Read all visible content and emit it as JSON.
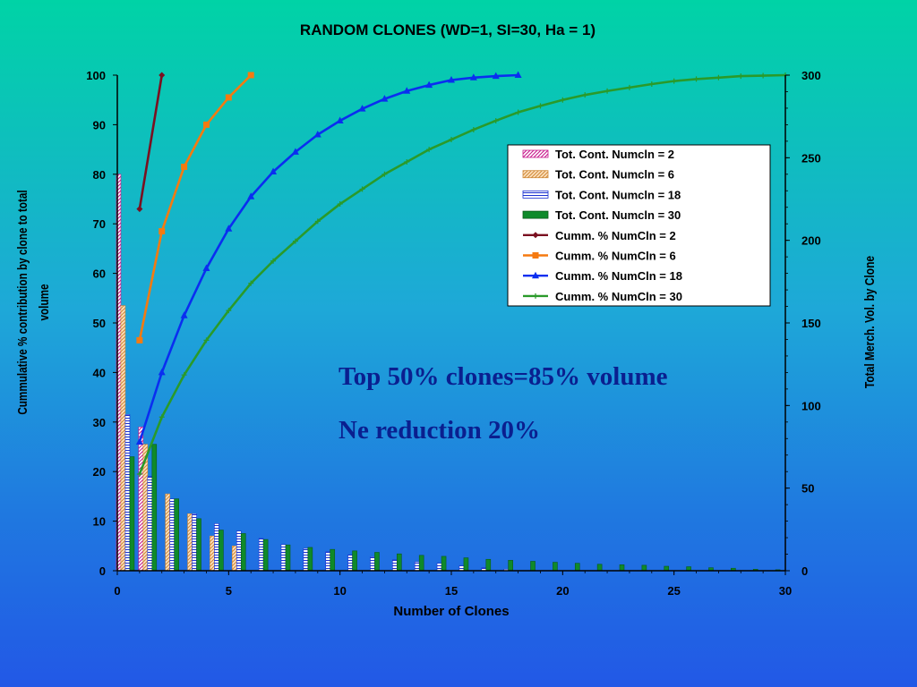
{
  "chart_data": {
    "type": "bar",
    "title": "RANDOM CLONES (WD=1, SI=30, Ha = 1)",
    "xlabel": "Number of Clones",
    "ylabel_left": "Cummulative % contribution by clone to total volume",
    "ylabel_right": "Total Merch. Vol. by Clone",
    "xlim": [
      0,
      30
    ],
    "ylim_left": [
      0,
      100
    ],
    "ylim_right": [
      0,
      300
    ],
    "xticks": [
      0,
      5,
      10,
      15,
      20,
      25,
      30
    ],
    "yticks_left": [
      0,
      10,
      20,
      30,
      40,
      50,
      60,
      70,
      80,
      90,
      100
    ],
    "yticks_right": [
      0,
      50,
      100,
      150,
      200,
      250,
      300
    ],
    "legend_position": "right",
    "grid": false,
    "annotations": [
      "Top 50% clones=85% volume",
      "Ne reduction 20%"
    ],
    "bar_series": [
      {
        "name": "Tot. Cont. Numcln = 2",
        "color": "#c8188c",
        "pattern": "diag",
        "values": [
          80,
          29
        ]
      },
      {
        "name": "Tot. Cont. Numcln = 6",
        "color": "#d08a3a",
        "pattern": "diag-orange",
        "values": [
          53.5,
          25.5,
          15.5,
          11.5,
          7,
          5
        ]
      },
      {
        "name": "Tot. Cont. Numcln = 18",
        "color": "#1a30d0",
        "pattern": "hbar",
        "values": [
          31.5,
          19,
          14.5,
          11.5,
          9.5,
          8,
          6.5,
          5.3,
          4.5,
          3.8,
          3.2,
          2.8,
          2.2,
          1.8,
          1.5,
          1,
          0.6,
          0.3
        ]
      },
      {
        "name": "Tot. Cont. Numcln = 30",
        "color": "#0f8a2a",
        "pattern": "solid",
        "values": [
          23,
          25.5,
          14.5,
          10.5,
          8.2,
          7.5,
          6.3,
          5.2,
          4.7,
          4.3,
          4,
          3.7,
          3.4,
          3.1,
          2.9,
          2.6,
          2.3,
          2.1,
          1.9,
          1.7,
          1.5,
          1.3,
          1.2,
          1.1,
          0.9,
          0.8,
          0.6,
          0.5,
          0.3,
          0.2
        ]
      }
    ],
    "line_series": [
      {
        "name": "Cumm. % NumCln = 2",
        "color": "#7a1020",
        "marker": "diamond",
        "x": [
          1,
          2
        ],
        "values": [
          73,
          100
        ]
      },
      {
        "name": "Cumm. % NumCln = 6",
        "color": "#f57a10",
        "marker": "square",
        "x": [
          1,
          2,
          3,
          4,
          5,
          6
        ],
        "values": [
          46.5,
          68.5,
          81.5,
          90,
          95.5,
          100
        ]
      },
      {
        "name": "Cumm. % NumCln = 18",
        "color": "#0a2ef0",
        "marker": "triangle",
        "x": [
          1,
          2,
          3,
          4,
          5,
          6,
          7,
          8,
          9,
          10,
          11,
          12,
          13,
          14,
          15,
          16,
          17,
          18
        ],
        "values": [
          26,
          40,
          51.5,
          61,
          69,
          75.5,
          80.5,
          84.5,
          88,
          90.8,
          93.2,
          95.2,
          96.8,
          98,
          99,
          99.5,
          99.8,
          100
        ]
      },
      {
        "name": "Cumm. % NumCln = 30",
        "color": "#2a9a2a",
        "marker": "cross",
        "x": [
          1,
          2,
          3,
          4,
          5,
          6,
          7,
          8,
          9,
          10,
          11,
          12,
          13,
          14,
          15,
          16,
          17,
          18,
          19,
          20,
          21,
          22,
          23,
          24,
          25,
          26,
          27,
          28,
          29,
          30
        ],
        "values": [
          19.5,
          31,
          39.5,
          46.5,
          52.5,
          58,
          62.5,
          66.5,
          70.5,
          74,
          77,
          80,
          82.5,
          85,
          87,
          89,
          90.8,
          92.5,
          93.8,
          95,
          96,
          96.8,
          97.5,
          98.2,
          98.8,
          99.2,
          99.5,
          99.8,
          99.9,
          100
        ]
      }
    ]
  }
}
